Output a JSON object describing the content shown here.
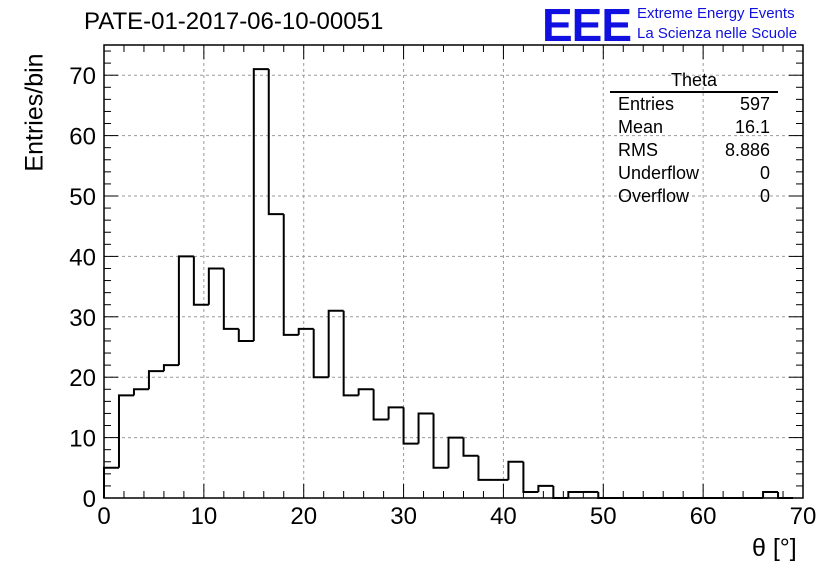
{
  "header": {
    "title": "PATE-01-2017-06-10-00051",
    "logo": {
      "mark": "EEE",
      "line1": "Extreme Energy Events",
      "line2": "La Scienza nelle Scuole",
      "color": "#1010e0"
    }
  },
  "stats_box": {
    "title": "Theta",
    "rows": [
      {
        "label": "Entries",
        "value": "597"
      },
      {
        "label": "Mean",
        "value": "16.1"
      },
      {
        "label": "RMS",
        "value": "8.886"
      },
      {
        "label": "Underflow",
        "value": "0"
      },
      {
        "label": "Overflow",
        "value": "0"
      }
    ]
  },
  "chart_data": {
    "type": "histogram",
    "title": "PATE-01-2017-06-10-00051",
    "xlabel": "θ [°]",
    "ylabel": "Entries/bin",
    "xlim": [
      0,
      70
    ],
    "ylim": [
      0,
      75
    ],
    "grid": true,
    "x_ticks": [
      0,
      10,
      20,
      30,
      40,
      50,
      60,
      70
    ],
    "y_ticks": [
      0,
      10,
      20,
      30,
      40,
      50,
      60,
      70
    ],
    "bin_width": 1.5,
    "bin_edges_start": 0,
    "values": [
      5,
      17,
      18,
      21,
      22,
      40,
      32,
      38,
      28,
      26,
      71,
      47,
      27,
      28,
      20,
      31,
      17,
      18,
      13,
      15,
      9,
      14,
      5,
      10,
      7,
      3,
      3,
      6,
      1,
      2,
      0,
      1,
      1,
      0,
      0,
      0,
      0,
      0,
      0,
      0,
      0,
      0,
      0,
      0,
      1,
      0
    ],
    "line_color": "#000000"
  }
}
